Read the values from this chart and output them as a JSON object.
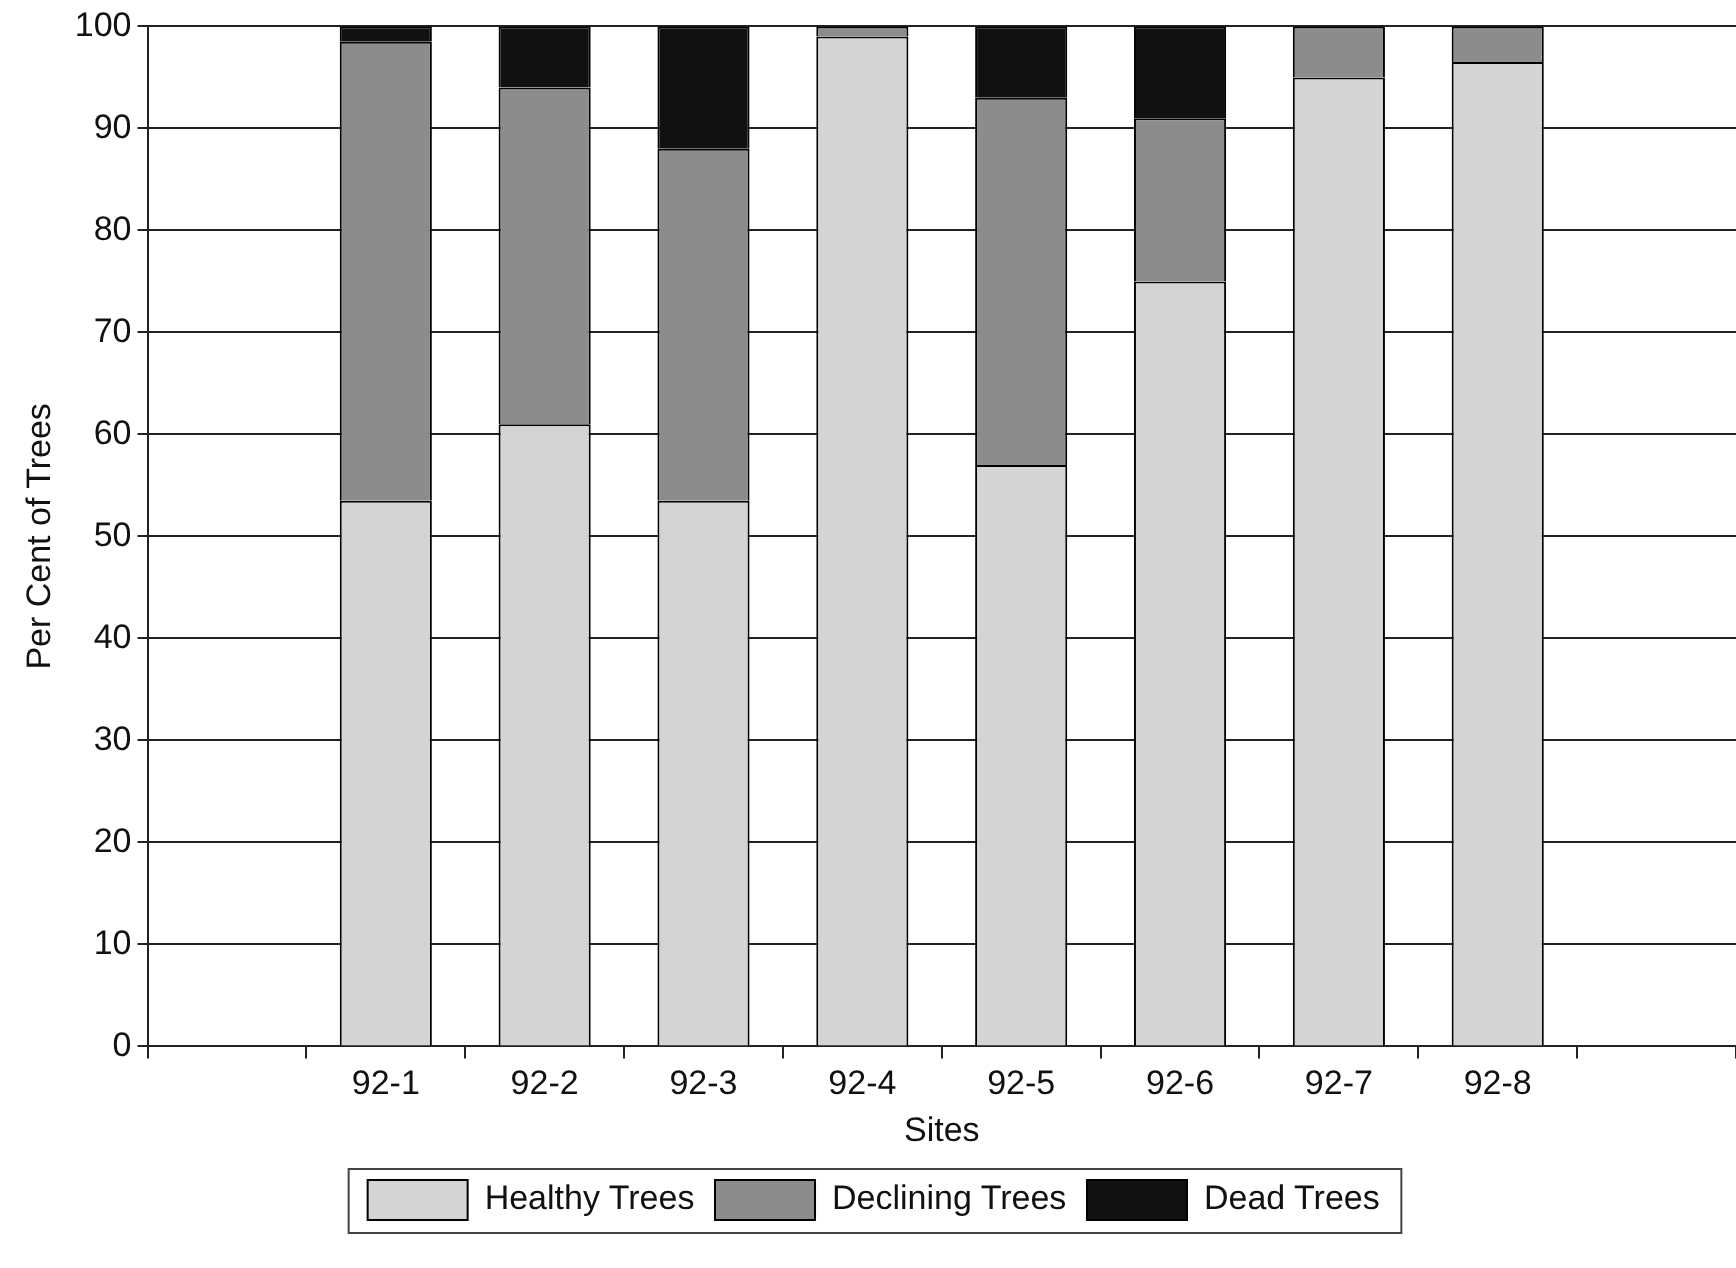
{
  "chart_data": {
    "type": "bar",
    "stacked": true,
    "xlabel": "Sites",
    "ylabel": "Per Cent of Trees",
    "categories": [
      null,
      "92-1",
      "92-2",
      "92-3",
      "92-4",
      "92-5",
      "92-6",
      "92-7",
      "92-8",
      null
    ],
    "series": [
      {
        "name": "Healthy Trees",
        "color": "#d4d4d4",
        "values": [
          null,
          53.5,
          61,
          53.5,
          99,
          57,
          75,
          95,
          96.5,
          null
        ]
      },
      {
        "name": "Declining Trees",
        "color": "#8c8c8c",
        "values": [
          null,
          45,
          33,
          34.5,
          1,
          36,
          16,
          5,
          3.5,
          null
        ]
      },
      {
        "name": "Dead Trees",
        "color": "#111111",
        "values": [
          null,
          1.5,
          6,
          12,
          0,
          7,
          9,
          0,
          0,
          null
        ]
      }
    ],
    "ylim": [
      0,
      100
    ],
    "yticks": [
      0,
      10,
      20,
      30,
      40,
      50,
      60,
      70,
      80,
      90,
      100
    ],
    "grid": "y",
    "legend": "bottom"
  }
}
